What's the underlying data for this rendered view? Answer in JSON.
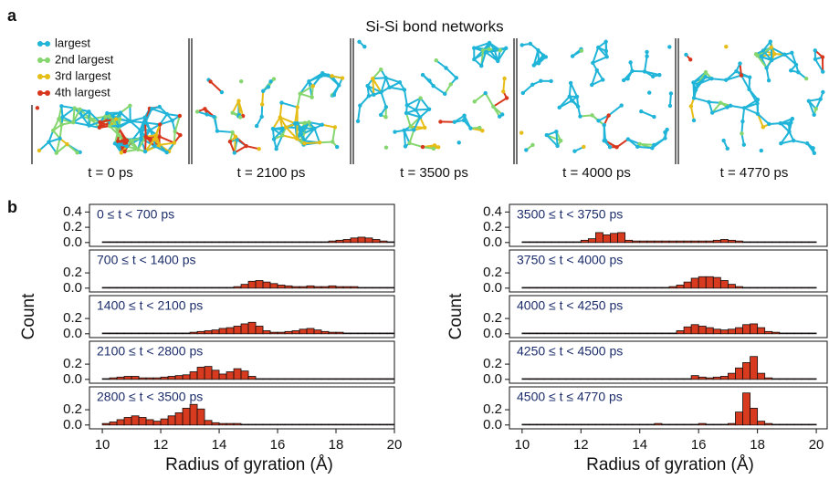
{
  "panel_a": {
    "label": "a",
    "title": "Si-Si bond networks",
    "legend": [
      {
        "name": "largest",
        "color": "#1fb4d8"
      },
      {
        "name": "2nd largest",
        "color": "#86d66f"
      },
      {
        "name": "3rd largest",
        "color": "#e6bd16"
      },
      {
        "name": "4th largest",
        "color": "#d8361c"
      }
    ],
    "snapshots": [
      "t = 0 ps",
      "t = 2100 ps",
      "t = 3500 ps",
      "t = 4000 ps",
      "t = 4770 ps"
    ]
  },
  "panel_b": {
    "label": "b"
  },
  "chart_data": [
    {
      "type": "histogram",
      "label": "0 ≤ t < 700 ps",
      "color": "#d73a1f",
      "xlim": [
        9.56,
        20
      ],
      "ylim": [
        -0.05,
        0.5
      ],
      "yticks": [
        {
          "value": 0,
          "label": "0.0"
        },
        0.2,
        0.4
      ],
      "bins": [
        10,
        10.25,
        10.5,
        10.75,
        11,
        11.25,
        11.5,
        11.75,
        12,
        12.25,
        12.5,
        12.75,
        13,
        13.25,
        13.5,
        13.75,
        14,
        14.25,
        14.5,
        14.75,
        15,
        15.25,
        15.5,
        15.75,
        16,
        16.25,
        16.5,
        16.75,
        17,
        17.25,
        17.5,
        17.75,
        18,
        18.25,
        18.5,
        18.75,
        19,
        19.25,
        19.5,
        19.75,
        20
      ],
      "values": [
        0.01,
        0.01,
        0.01,
        0.01,
        0.01,
        0.01,
        0.01,
        0.01,
        0.01,
        0.01,
        0.01,
        0.01,
        0.01,
        0.01,
        0.01,
        0.01,
        0.01,
        0.01,
        0.01,
        0.01,
        0.01,
        0.01,
        0.01,
        0.01,
        0.01,
        0.01,
        0.01,
        0.01,
        0.01,
        0.01,
        0.01,
        0.02,
        0.03,
        0.04,
        0.06,
        0.07,
        0.06,
        0.04,
        0.02,
        0.01
      ]
    },
    {
      "type": "histogram",
      "label": "700 ≤ t < 1400 ps",
      "color": "#d73a1f",
      "xlim": [
        9.56,
        20
      ],
      "ylim": [
        -0.05,
        0.5
      ],
      "yticks": [
        {
          "value": 0,
          "label": "0.0"
        },
        0.2
      ],
      "bins": [
        10,
        10.25,
        10.5,
        10.75,
        11,
        11.25,
        11.5,
        11.75,
        12,
        12.25,
        12.5,
        12.75,
        13,
        13.25,
        13.5,
        13.75,
        14,
        14.25,
        14.5,
        14.75,
        15,
        15.25,
        15.5,
        15.75,
        16,
        16.25,
        16.5,
        16.75,
        17,
        17.25,
        17.5,
        17.75,
        18,
        18.25,
        18.5,
        18.75,
        19,
        19.25,
        19.5,
        19.75,
        20
      ],
      "values": [
        0.01,
        0.01,
        0.01,
        0.01,
        0.01,
        0.01,
        0.01,
        0.01,
        0.01,
        0.01,
        0.01,
        0.01,
        0.01,
        0.01,
        0.01,
        0.01,
        0.01,
        0.01,
        0.02,
        0.05,
        0.09,
        0.1,
        0.08,
        0.06,
        0.04,
        0.03,
        0.02,
        0.02,
        0.03,
        0.02,
        0.02,
        0.03,
        0.02,
        0.02,
        0.02,
        0.01,
        0.01,
        0.01,
        0.01,
        0.01
      ]
    },
    {
      "type": "histogram",
      "label": "1400 ≤ t < 2100 ps",
      "color": "#d73a1f",
      "xlim": [
        9.56,
        20
      ],
      "ylim": [
        -0.05,
        0.5
      ],
      "yticks": [
        {
          "value": 0,
          "label": "0.0"
        },
        0.2
      ],
      "ylabel": "Count",
      "bins": [
        10,
        10.25,
        10.5,
        10.75,
        11,
        11.25,
        11.5,
        11.75,
        12,
        12.25,
        12.5,
        12.75,
        13,
        13.25,
        13.5,
        13.75,
        14,
        14.25,
        14.5,
        14.75,
        15,
        15.25,
        15.5,
        15.75,
        16,
        16.25,
        16.5,
        16.75,
        17,
        17.25,
        17.5,
        17.75,
        18,
        18.25,
        18.5,
        18.75,
        19,
        19.25,
        19.5,
        19.75,
        20
      ],
      "values": [
        0.01,
        0.01,
        0.01,
        0.01,
        0.01,
        0.01,
        0.01,
        0.01,
        0.01,
        0.01,
        0.01,
        0.01,
        0.02,
        0.03,
        0.04,
        0.05,
        0.07,
        0.08,
        0.1,
        0.13,
        0.15,
        0.1,
        0.04,
        0.02,
        0.02,
        0.03,
        0.04,
        0.06,
        0.07,
        0.05,
        0.03,
        0.02,
        0.02,
        0.01,
        0.01,
        0.01,
        0.01,
        0.01,
        0.01,
        0.01
      ]
    },
    {
      "type": "histogram",
      "label": "2100 ≤ t < 2800 ps",
      "color": "#d73a1f",
      "xlim": [
        9.56,
        20
      ],
      "ylim": [
        -0.05,
        0.5
      ],
      "yticks": [
        {
          "value": 0,
          "label": "0.0"
        },
        0.2
      ],
      "bins": [
        10,
        10.25,
        10.5,
        10.75,
        11,
        11.25,
        11.5,
        11.75,
        12,
        12.25,
        12.5,
        12.75,
        13,
        13.25,
        13.5,
        13.75,
        14,
        14.25,
        14.5,
        14.75,
        15,
        15.25,
        15.5,
        15.75,
        16,
        16.25,
        16.5,
        16.75,
        17,
        17.25,
        17.5,
        17.75,
        18,
        18.25,
        18.5,
        18.75,
        19,
        19.25,
        19.5,
        19.75,
        20
      ],
      "values": [
        0.01,
        0.02,
        0.03,
        0.04,
        0.04,
        0.02,
        0.02,
        0.02,
        0.03,
        0.04,
        0.05,
        0.06,
        0.1,
        0.16,
        0.17,
        0.12,
        0.07,
        0.1,
        0.14,
        0.11,
        0.04,
        0.01,
        0.01,
        0.01,
        0.01,
        0.01,
        0.01,
        0.01,
        0.01,
        0.01,
        0.01,
        0.01,
        0.01,
        0.01,
        0.01,
        0.01,
        0.01,
        0.01,
        0.01,
        0.01
      ]
    },
    {
      "type": "histogram",
      "label": "2800 ≤ t < 3500 ps",
      "color": "#d73a1f",
      "xlim": [
        9.56,
        20
      ],
      "ylim": [
        -0.05,
        0.5
      ],
      "yticks": [
        {
          "value": 0,
          "label": "0.0"
        },
        0.2
      ],
      "xticks": [
        10,
        12,
        14,
        16,
        18,
        20
      ],
      "xlabel": "Radius of gyration (Å)",
      "bins": [
        10,
        10.25,
        10.5,
        10.75,
        11,
        11.25,
        11.5,
        11.75,
        12,
        12.25,
        12.5,
        12.75,
        13,
        13.25,
        13.5,
        13.75,
        14,
        14.25,
        14.5,
        14.75,
        15,
        15.25,
        15.5,
        15.75,
        16,
        16.25,
        16.5,
        16.75,
        17,
        17.25,
        17.5,
        17.75,
        18,
        18.25,
        18.5,
        18.75,
        19,
        19.25,
        19.5,
        19.75,
        20
      ],
      "values": [
        0.02,
        0.04,
        0.07,
        0.1,
        0.12,
        0.1,
        0.07,
        0.05,
        0.08,
        0.12,
        0.16,
        0.22,
        0.27,
        0.21,
        0.06,
        0.03,
        0.02,
        0.02,
        0.02,
        0.01,
        0.01,
        0.01,
        0.01,
        0.01,
        0.01,
        0.01,
        0.01,
        0.01,
        0.01,
        0.01,
        0.01,
        0.01,
        0.01,
        0.01,
        0.01,
        0.01,
        0.01,
        0.01,
        0.01,
        0.01
      ]
    },
    {
      "type": "histogram",
      "label": "3500 ≤ t < 3750 ps",
      "color": "#d73a1f",
      "xlim": [
        9.57,
        20.37
      ],
      "ylim": [
        -0.05,
        0.5
      ],
      "yticks": [
        {
          "value": 0,
          "label": "0.0"
        },
        0.2,
        0.4
      ],
      "bins": [
        10,
        10.25,
        10.5,
        10.75,
        11,
        11.25,
        11.5,
        11.75,
        12,
        12.25,
        12.5,
        12.75,
        13,
        13.25,
        13.5,
        13.75,
        14,
        14.25,
        14.5,
        14.75,
        15,
        15.25,
        15.5,
        15.75,
        16,
        16.25,
        16.5,
        16.75,
        17,
        17.25,
        17.5,
        17.75,
        18,
        18.25,
        18.5,
        18.75,
        19,
        19.25,
        19.5,
        19.75,
        20
      ],
      "values": [
        0.01,
        0.01,
        0.01,
        0.01,
        0.01,
        0.01,
        0.01,
        0.01,
        0.03,
        0.05,
        0.13,
        0.1,
        0.12,
        0.13,
        0.03,
        0.02,
        0.02,
        0.02,
        0.02,
        0.02,
        0.02,
        0.02,
        0.02,
        0.02,
        0.02,
        0.02,
        0.03,
        0.04,
        0.03,
        0.02,
        0.01,
        0.01,
        0.01,
        0.01,
        0.01,
        0.01,
        0.01,
        0.01,
        0.01,
        0.01
      ]
    },
    {
      "type": "histogram",
      "label": "3750 ≤ t < 4000 ps",
      "color": "#d73a1f",
      "xlim": [
        9.57,
        20.37
      ],
      "ylim": [
        -0.05,
        0.5
      ],
      "yticks": [
        {
          "value": 0,
          "label": "0.0"
        },
        0.2
      ],
      "bins": [
        10,
        10.25,
        10.5,
        10.75,
        11,
        11.25,
        11.5,
        11.75,
        12,
        12.25,
        12.5,
        12.75,
        13,
        13.25,
        13.5,
        13.75,
        14,
        14.25,
        14.5,
        14.75,
        15,
        15.25,
        15.5,
        15.75,
        16,
        16.25,
        16.5,
        16.75,
        17,
        17.25,
        17.5,
        17.75,
        18,
        18.25,
        18.5,
        18.75,
        19,
        19.25,
        19.5,
        19.75,
        20
      ],
      "values": [
        0.01,
        0.01,
        0.01,
        0.01,
        0.01,
        0.01,
        0.01,
        0.01,
        0.01,
        0.01,
        0.01,
        0.01,
        0.01,
        0.01,
        0.01,
        0.01,
        0.01,
        0.01,
        0.01,
        0.01,
        0.02,
        0.04,
        0.08,
        0.13,
        0.15,
        0.15,
        0.14,
        0.1,
        0.05,
        0.02,
        0.01,
        0.01,
        0.01,
        0.01,
        0.01,
        0.01,
        0.01,
        0.01,
        0.01,
        0.01
      ]
    },
    {
      "type": "histogram",
      "label": "4000 ≤ t < 4250 ps",
      "color": "#d73a1f",
      "xlim": [
        9.57,
        20.37
      ],
      "ylim": [
        -0.05,
        0.5
      ],
      "yticks": [
        {
          "value": 0,
          "label": "0.0"
        },
        0.2
      ],
      "ylabel": "Count",
      "bins": [
        10,
        10.25,
        10.5,
        10.75,
        11,
        11.25,
        11.5,
        11.75,
        12,
        12.25,
        12.5,
        12.75,
        13,
        13.25,
        13.5,
        13.75,
        14,
        14.25,
        14.5,
        14.75,
        15,
        15.25,
        15.5,
        15.75,
        16,
        16.25,
        16.5,
        16.75,
        17,
        17.25,
        17.5,
        17.75,
        18,
        18.25,
        18.5,
        18.75,
        19,
        19.25,
        19.5,
        19.75,
        20
      ],
      "values": [
        0.01,
        0.01,
        0.01,
        0.01,
        0.01,
        0.01,
        0.01,
        0.01,
        0.01,
        0.01,
        0.01,
        0.01,
        0.01,
        0.01,
        0.01,
        0.01,
        0.01,
        0.01,
        0.01,
        0.01,
        0.01,
        0.04,
        0.09,
        0.12,
        0.1,
        0.08,
        0.06,
        0.05,
        0.06,
        0.08,
        0.12,
        0.13,
        0.08,
        0.03,
        0.02,
        0.01,
        0.01,
        0.01,
        0.01,
        0.01
      ]
    },
    {
      "type": "histogram",
      "label": "4250 ≤ t < 4500 ps",
      "color": "#d73a1f",
      "xlim": [
        9.57,
        20.37
      ],
      "ylim": [
        -0.05,
        0.5
      ],
      "yticks": [
        {
          "value": 0,
          "label": "0.0"
        },
        0.2
      ],
      "bins": [
        10,
        10.25,
        10.5,
        10.75,
        11,
        11.25,
        11.5,
        11.75,
        12,
        12.25,
        12.5,
        12.75,
        13,
        13.25,
        13.5,
        13.75,
        14,
        14.25,
        14.5,
        14.75,
        15,
        15.25,
        15.5,
        15.75,
        16,
        16.25,
        16.5,
        16.75,
        17,
        17.25,
        17.5,
        17.75,
        18,
        18.25,
        18.5,
        18.75,
        19,
        19.25,
        19.5,
        19.75,
        20
      ],
      "values": [
        0.01,
        0.01,
        0.01,
        0.01,
        0.01,
        0.01,
        0.01,
        0.01,
        0.01,
        0.01,
        0.01,
        0.01,
        0.01,
        0.01,
        0.01,
        0.01,
        0.01,
        0.01,
        0.01,
        0.01,
        0.01,
        0.01,
        0.01,
        0.05,
        0.03,
        0.02,
        0.03,
        0.04,
        0.08,
        0.15,
        0.22,
        0.3,
        0.08,
        0.02,
        0.01,
        0.01,
        0.01,
        0.01,
        0.01,
        0.01
      ]
    },
    {
      "type": "histogram",
      "label": "4500 ≤ t ≤ 4770 ps",
      "color": "#d73a1f",
      "xlim": [
        9.57,
        20.37
      ],
      "ylim": [
        -0.05,
        0.5
      ],
      "yticks": [
        {
          "value": 0,
          "label": "0.0"
        },
        0.2
      ],
      "xticks": [
        10,
        12,
        14,
        16,
        18,
        20
      ],
      "xlabel": "Radius of gyration (Å)",
      "bins": [
        10,
        10.25,
        10.5,
        10.75,
        11,
        11.25,
        11.5,
        11.75,
        12,
        12.25,
        12.5,
        12.75,
        13,
        13.25,
        13.5,
        13.75,
        14,
        14.25,
        14.5,
        14.75,
        15,
        15.25,
        15.5,
        15.75,
        16,
        16.25,
        16.5,
        16.75,
        17,
        17.25,
        17.5,
        17.75,
        18,
        18.25,
        18.5,
        18.75,
        19,
        19.25,
        19.5,
        19.75,
        20
      ],
      "values": [
        0.01,
        0.01,
        0.01,
        0.01,
        0.01,
        0.01,
        0.01,
        0.01,
        0.01,
        0.01,
        0.01,
        0.01,
        0.01,
        0.01,
        0.01,
        0.01,
        0.01,
        0.01,
        0.02,
        0.01,
        0.01,
        0.01,
        0.01,
        0.01,
        0.02,
        0.01,
        0.01,
        0.01,
        0.02,
        0.17,
        0.42,
        0.22,
        0.05,
        0.02,
        0.01,
        0.01,
        0.01,
        0.01,
        0.01,
        0.01
      ]
    }
  ]
}
